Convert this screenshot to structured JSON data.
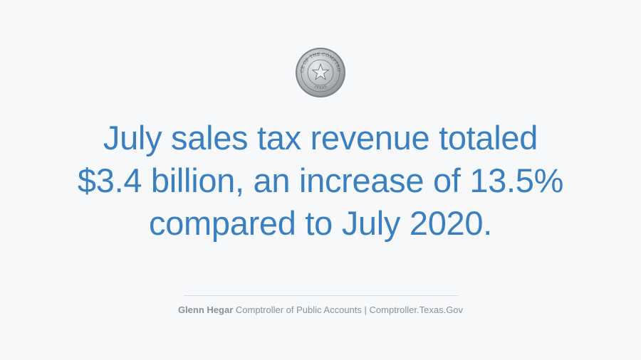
{
  "seal": {
    "text_top": "OFFICE OF THE COMPTROLLER",
    "text_bottom": "TEXAS",
    "icon": "star-seal-icon"
  },
  "headline": {
    "lines": [
      "July sales tax revenue totaled",
      "$3.4 billion, an increase of 13.5%",
      "compared to July 2020."
    ]
  },
  "footer": {
    "name": "Glenn Hegar",
    "title": "Comptroller of Public Accounts",
    "separator": "|",
    "website": "Comptroller.Texas.Gov"
  },
  "colors": {
    "background": "#f6f8fa",
    "headline": "#3a7fbf",
    "footer_text": "#8a9199",
    "divider": "#d9dde1"
  }
}
